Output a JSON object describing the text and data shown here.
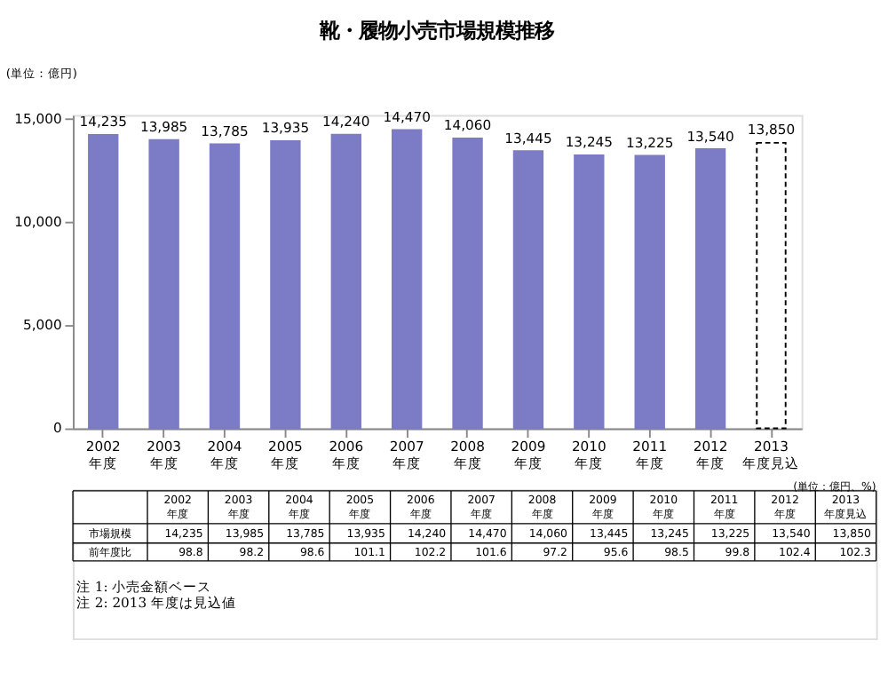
{
  "chart_data": {
    "type": "bar",
    "title": "靴・履物小売市場規模推移",
    "categories": [
      "2002\n年度",
      "2003\n年度",
      "2004\n年度",
      "2005\n年度",
      "2006\n年度",
      "2007\n年度",
      "2008\n年度",
      "2009\n年度",
      "2010\n年度",
      "2011\n年度",
      "2012\n年度",
      "2013\n年度見込"
    ],
    "series": [
      {
        "color": "#7b7bc6",
        "values": [
          14235,
          13985,
          13785,
          13935,
          14240,
          14470,
          14060,
          13445,
          13245,
          13225,
          13540,
          null
        ],
        "value_labels": [
          "14,235",
          "13,985",
          "13,785",
          "13,935",
          "14,240",
          "14,470",
          "14,060",
          "13,445",
          "13,245",
          "13,225",
          "13,540",
          null
        ]
      },
      {
        "color": "#ffffff",
        "line_style": "dashed",
        "values": [
          null,
          null,
          null,
          null,
          null,
          null,
          null,
          null,
          null,
          null,
          null,
          13850
        ],
        "value_labels": [
          null,
          null,
          null,
          null,
          null,
          null,
          null,
          null,
          null,
          null,
          null,
          "13,850"
        ]
      }
    ],
    "ylim": [
      0,
      15200
    ],
    "yticks": [
      {
        "value": 0,
        "label": "0"
      },
      {
        "value": 5000,
        "label": "5,000"
      },
      {
        "value": 10000,
        "label": "10,000"
      },
      {
        "value": 15000,
        "label": "15,000"
      }
    ],
    "grid": false,
    "annotations": [
      "(単位：億円)",
      "(単位：億円、%)",
      "市場規模",
      "前年度比",
      "98.8",
      "98.2",
      "98.6",
      "101.1",
      "102.2",
      "101.6",
      "97.2",
      "95.6",
      "98.5",
      "99.8",
      "102.4",
      "102.3",
      "注 1: 小売金額ベース",
      "注 2: 2013 年度は見込値"
    ]
  }
}
